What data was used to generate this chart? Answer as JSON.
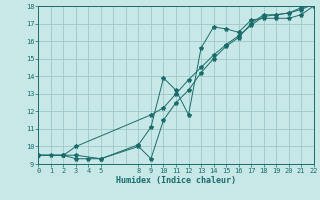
{
  "bg_color": "#c8e8e8",
  "grid_color": "#a0c8c8",
  "line_color": "#1a6b6b",
  "xlabel": "Humidex (Indice chaleur)",
  "xlim": [
    0,
    22
  ],
  "ylim": [
    9,
    18
  ],
  "xgrid_ticks": [
    0,
    1,
    2,
    3,
    4,
    5,
    6,
    7,
    8,
    9,
    10,
    11,
    12,
    13,
    14,
    15,
    16,
    17,
    18,
    19,
    20,
    21,
    22
  ],
  "xtick_labels_pos": [
    0,
    1,
    2,
    3,
    4,
    5,
    8,
    9,
    10,
    11,
    12,
    13,
    14,
    15,
    16,
    17,
    18,
    19,
    20,
    21,
    22
  ],
  "xtick_labels_val": [
    "0",
    "1",
    "2",
    "3",
    "4",
    "5",
    "8",
    "9",
    "10",
    "11",
    "12",
    "13",
    "14",
    "15",
    "16",
    "17",
    "18",
    "19",
    "20",
    "21",
    "22"
  ],
  "yticks": [
    9,
    10,
    11,
    12,
    13,
    14,
    15,
    16,
    17,
    18
  ],
  "line1_x": [
    0,
    1,
    2,
    3,
    4,
    5,
    8,
    9,
    10,
    11,
    12,
    13,
    14,
    15,
    16,
    17,
    18,
    19,
    20,
    21,
    22
  ],
  "line1_y": [
    9.5,
    9.5,
    9.5,
    9.3,
    9.3,
    9.3,
    10.1,
    11.1,
    13.9,
    13.2,
    11.8,
    15.6,
    16.8,
    16.7,
    16.5,
    17.2,
    17.3,
    17.3,
    17.3,
    17.5,
    18.0
  ],
  "line2_x": [
    0,
    2,
    3,
    9,
    10,
    11,
    12,
    13,
    14,
    15,
    16,
    17,
    18,
    19,
    20,
    21,
    22
  ],
  "line2_y": [
    9.5,
    9.5,
    10.0,
    11.8,
    12.2,
    13.0,
    13.8,
    14.5,
    15.2,
    15.8,
    16.3,
    16.9,
    17.4,
    17.5,
    17.6,
    17.9,
    18.1
  ],
  "line3_x": [
    0,
    2,
    3,
    5,
    8,
    9,
    10,
    11,
    12,
    13,
    14,
    15,
    16,
    17,
    18,
    19,
    20,
    21,
    22
  ],
  "line3_y": [
    9.5,
    9.5,
    9.5,
    9.3,
    10.0,
    9.3,
    11.5,
    12.5,
    13.2,
    14.2,
    15.0,
    15.7,
    16.2,
    17.0,
    17.5,
    17.5,
    17.6,
    17.8,
    18.1
  ],
  "title_fontsize": 7,
  "tick_fontsize": 5,
  "xlabel_fontsize": 6
}
